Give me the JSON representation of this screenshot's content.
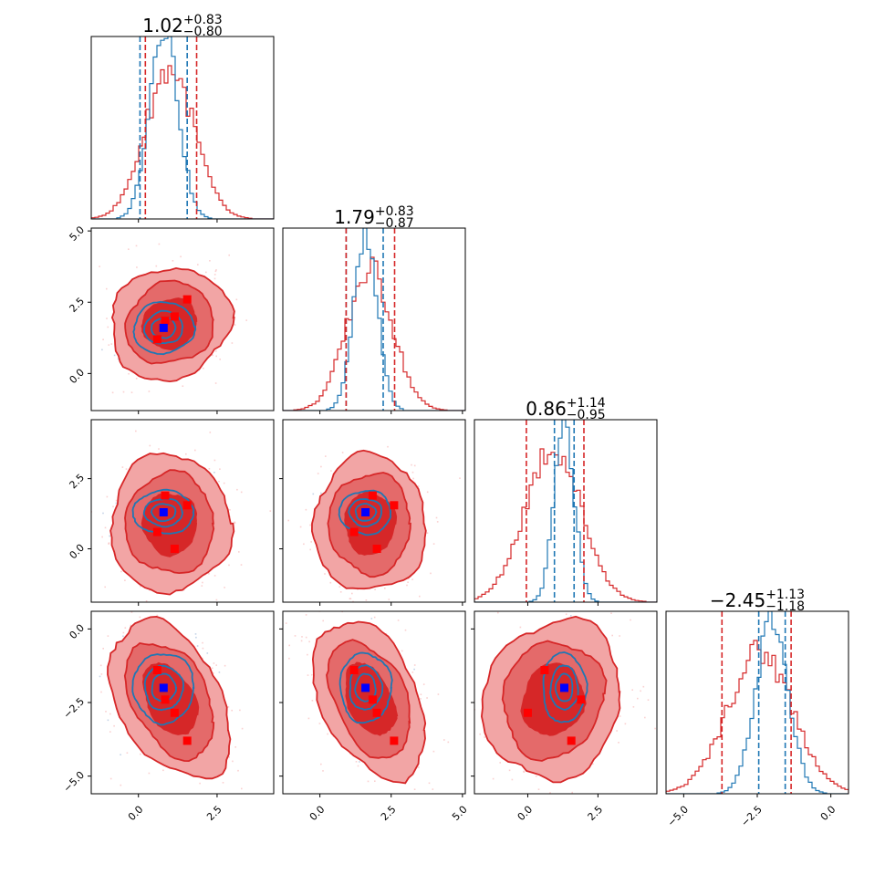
{
  "colors": {
    "red": "#d62728",
    "blue": "#1f77b4",
    "red_fill_outer": "#f2a5a5",
    "red_fill_mid": "#e46a6a",
    "red_fill_inner": "#d62728",
    "truth_blue": "#0000ff",
    "truth_red": "#ff0000"
  },
  "chart_data": {
    "type": "corner",
    "grid": false,
    "legend": "none",
    "parameters": [
      {
        "range": [
          -1.5,
          4.3
        ],
        "ticks": [
          0.0,
          2.5
        ],
        "tick_labels": [
          "0.0",
          "2.5"
        ]
      },
      {
        "range": [
          -1.3,
          5.1
        ],
        "ticks": [
          0.0,
          2.5,
          5.0
        ],
        "tick_labels": [
          "0.0",
          "2.5",
          "5.0"
        ]
      },
      {
        "range": [
          -1.9,
          4.6
        ],
        "ticks": [
          0.0,
          2.5
        ],
        "tick_labels": [
          "0.0",
          "2.5"
        ]
      },
      {
        "range": [
          -5.6,
          0.6
        ],
        "ticks": [
          -5.0,
          -2.5,
          0.0
        ],
        "tick_labels": [
          "−5.0",
          "−2.5",
          "0.0"
        ]
      }
    ],
    "titles": [
      {
        "median": "1.02",
        "upper": "+0.83",
        "lower": "−0.80"
      },
      {
        "median": "1.79",
        "upper": "+0.83",
        "lower": "−0.87"
      },
      {
        "median": "0.86",
        "upper": "+1.14",
        "lower": "−0.95"
      },
      {
        "median": "−2.45",
        "upper": "+1.13",
        "lower": "−1.18"
      }
    ],
    "series": [
      {
        "color": "blue",
        "mean": [
          0.8,
          1.6,
          1.3,
          -2.0
        ],
        "std": [
          0.45,
          0.42,
          0.36,
          0.55
        ],
        "quantiles": [
          [
            0.05,
            1.55
          ],
          [
            0.92,
            2.22
          ],
          [
            0.95,
            1.65
          ],
          [
            -2.45,
            -1.55
          ]
        ],
        "correlations": {
          "1-0": 0.05,
          "2-0": 0.0,
          "2-1": 0.0,
          "3-0": 0.0,
          "3-1": 0.0,
          "3-2": 0.0
        }
      },
      {
        "color": "red",
        "mean": [
          1.0,
          1.75,
          0.9,
          -2.4
        ],
        "std": [
          0.78,
          0.8,
          1.0,
          1.1
        ],
        "quantiles": [
          [
            0.22,
            1.85
          ],
          [
            0.92,
            2.62
          ],
          [
            -0.05,
            2.0
          ],
          [
            -3.7,
            -1.35
          ]
        ],
        "correlations": {
          "1-0": 0.1,
          "2-0": 0.0,
          "2-1": 0.0,
          "3-0": -0.4,
          "3-1": -0.4,
          "3-2": 0.1
        }
      }
    ],
    "truth_blue": [
      0.8,
      1.6,
      1.3,
      -2.0
    ],
    "truth_red_points": [
      [
        0.6,
        1.2,
        0.6,
        -1.4
      ],
      [
        0.85,
        1.85,
        1.9,
        -2.4
      ],
      [
        1.15,
        2.0,
        0.0,
        -2.85
      ],
      [
        1.55,
        2.6,
        1.55,
        -3.8
      ]
    ]
  }
}
